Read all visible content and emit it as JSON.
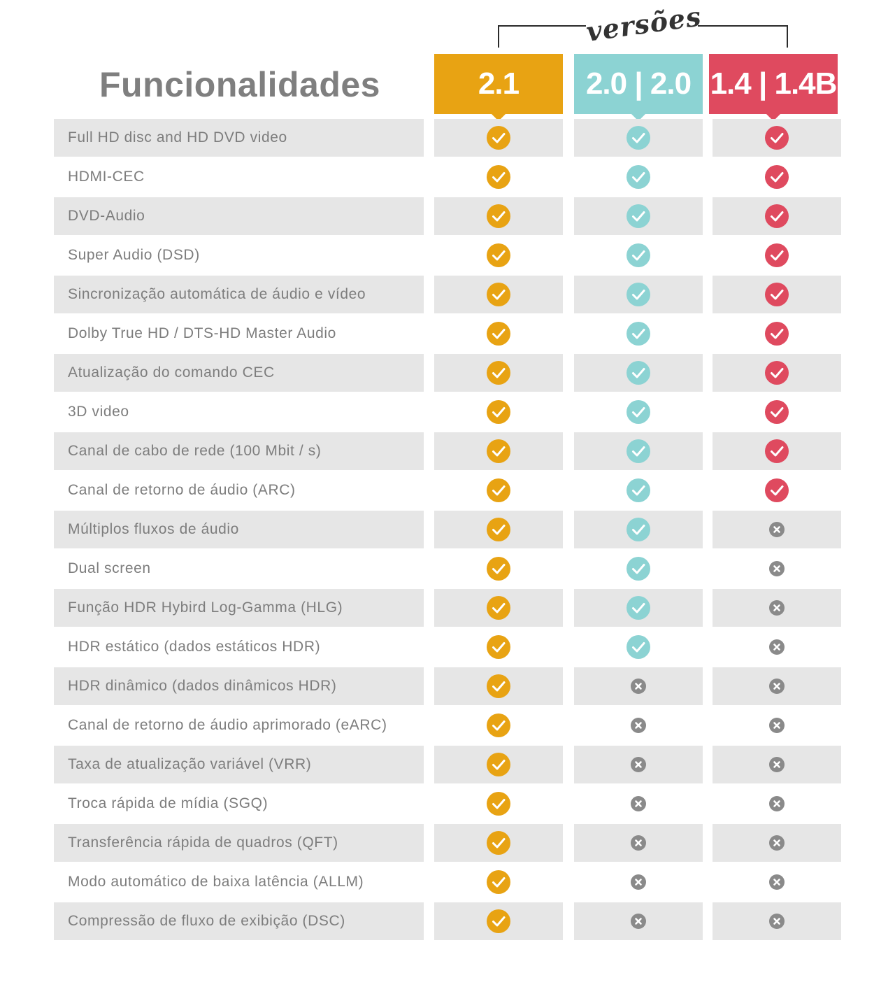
{
  "title": "Funcionalidades",
  "bracket_label": "versões",
  "versions": [
    {
      "label": "2.1",
      "color": "#e8a313"
    },
    {
      "label": "2.0 | 2.0",
      "color": "#8cd3d3"
    },
    {
      "label": "1.4 | 1.4B",
      "color": "#df4a5f"
    }
  ],
  "no_color": "#8a8a8a",
  "features": [
    {
      "label": "Full HD disc and HD DVD video",
      "support": [
        true,
        true,
        true
      ]
    },
    {
      "label": "HDMI-CEC",
      "support": [
        true,
        true,
        true
      ]
    },
    {
      "label": "DVD-Audio",
      "support": [
        true,
        true,
        true
      ]
    },
    {
      "label": "Super Audio (DSD)",
      "support": [
        true,
        true,
        true
      ]
    },
    {
      "label": "Sincronização automática de áudio e vídeo",
      "support": [
        true,
        true,
        true
      ]
    },
    {
      "label": "Dolby True HD / DTS-HD Master Audio",
      "support": [
        true,
        true,
        true
      ]
    },
    {
      "label": "Atualização do comando CEC",
      "support": [
        true,
        true,
        true
      ]
    },
    {
      "label": "3D video",
      "support": [
        true,
        true,
        true
      ]
    },
    {
      "label": "Canal de cabo de rede (100 Mbit / s)",
      "support": [
        true,
        true,
        true
      ]
    },
    {
      "label": "Canal de retorno de áudio (ARC)",
      "support": [
        true,
        true,
        true
      ]
    },
    {
      "label": "Múltiplos fluxos de áudio",
      "support": [
        true,
        true,
        false
      ]
    },
    {
      "label": "Dual screen",
      "support": [
        true,
        true,
        false
      ]
    },
    {
      "label": "Função HDR Hybird Log-Gamma (HLG)",
      "support": [
        true,
        true,
        false
      ]
    },
    {
      "label": "HDR estático (dados estáticos HDR)",
      "support": [
        true,
        true,
        false
      ]
    },
    {
      "label": "HDR dinâmico (dados dinâmicos HDR)",
      "support": [
        true,
        false,
        false
      ]
    },
    {
      "label": "Canal de retorno de áudio aprimorado (eARC)",
      "support": [
        true,
        false,
        false
      ]
    },
    {
      "label": "Taxa de atualização variável (VRR)",
      "support": [
        true,
        false,
        false
      ]
    },
    {
      "label": "Troca rápida de mídia (SGQ)",
      "support": [
        true,
        false,
        false
      ]
    },
    {
      "label": "Transferência rápida de quadros (QFT)",
      "support": [
        true,
        false,
        false
      ]
    },
    {
      "label": "Modo automático de baixa latência (ALLM)",
      "support": [
        true,
        false,
        false
      ]
    },
    {
      "label": "Compressão de fluxo de exibição (DSC)",
      "support": [
        true,
        false,
        false
      ]
    }
  ]
}
